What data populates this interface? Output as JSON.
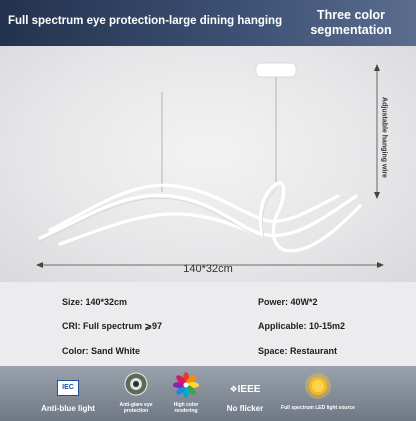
{
  "header": {
    "title": "Full spectrum eye protection-large dining hanging",
    "badge_line1": "Three color",
    "badge_line2": "segmentation"
  },
  "photo": {
    "side_label": "Adjustable hanging wire",
    "width_label": "140*32cm"
  },
  "specs": {
    "size": "Size: 140*32cm",
    "power": "Power: 40W*2",
    "cri": "CRI: Full spectrum ⩾97",
    "applicable": "Applicable: 10-15m2",
    "color": "Color: Sand White",
    "space": "Space: Restaurant"
  },
  "footer": {
    "badges": [
      {
        "icon": "iec-logo-icon",
        "icon_text": "IEC",
        "label": "Anti-blue light"
      },
      {
        "icon": "eye-icon",
        "label_line1": "Anti-glare eye",
        "label_line2": "protection"
      },
      {
        "icon": "color-wheel-icon",
        "label_line1": "High color",
        "label_line2": "rendering"
      },
      {
        "icon": "ieee-logo-icon",
        "icon_text": "IEEE",
        "label": "No flicker"
      },
      {
        "icon": "sun-icon",
        "label": "Full spectrum LED light source"
      }
    ]
  },
  "colors": {
    "header_dark": "#23324e",
    "header_light": "#5b6d8d",
    "footer": "#7d8591",
    "lamp": "#ffffff"
  }
}
